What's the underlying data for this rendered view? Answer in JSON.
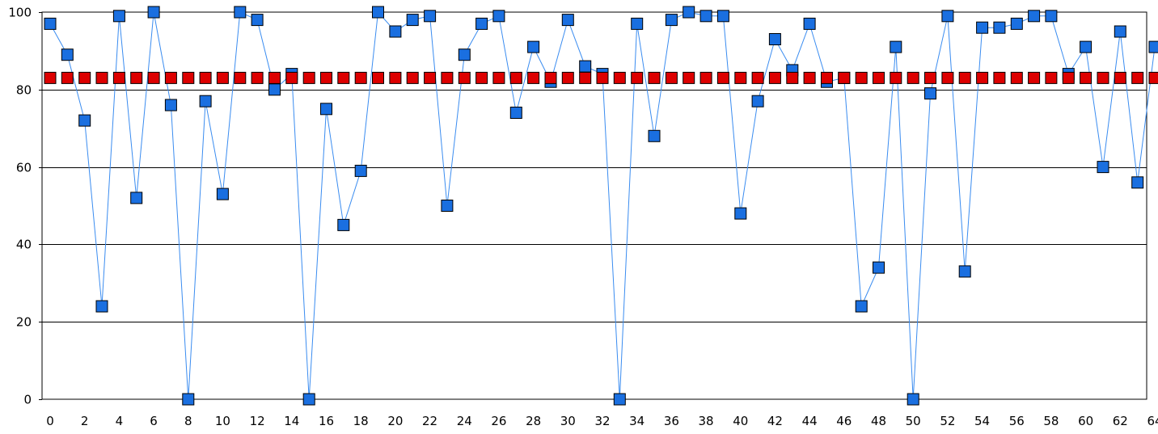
{
  "chart_data": {
    "type": "line",
    "title": "",
    "xlabel": "",
    "ylabel": "",
    "xlim": [
      0,
      64
    ],
    "ylim": [
      0,
      100
    ],
    "x_ticks": [
      0,
      2,
      4,
      6,
      8,
      10,
      12,
      14,
      16,
      18,
      20,
      22,
      24,
      26,
      28,
      30,
      32,
      34,
      36,
      38,
      40,
      42,
      44,
      46,
      48,
      50,
      52,
      54,
      56,
      58,
      60,
      62,
      64
    ],
    "y_ticks": [
      0,
      20,
      40,
      60,
      80,
      100
    ],
    "grid": "horizontal",
    "legend": "none",
    "series": [
      {
        "color": "#1a6fe0",
        "line_color": "#3a8cf0",
        "marker": "square",
        "values": [
          97,
          89,
          72,
          24,
          99,
          52,
          100,
          76,
          0,
          77,
          53,
          100,
          98,
          80,
          84,
          0,
          75,
          45,
          59,
          100,
          95,
          98,
          99,
          50,
          89,
          97,
          99,
          74,
          91,
          82,
          98,
          86,
          84,
          0,
          97,
          68,
          98,
          100,
          99,
          99,
          48,
          77,
          93,
          85,
          97,
          82,
          83,
          24,
          34,
          91,
          0,
          79,
          99,
          33,
          96,
          96,
          97,
          99,
          99,
          84,
          91,
          60,
          95,
          56,
          91
        ]
      },
      {
        "color": "#dd0000",
        "marker": "square",
        "values": [
          83,
          83,
          83,
          83,
          83,
          83,
          83,
          83,
          83,
          83,
          83,
          83,
          83,
          83,
          83,
          83,
          83,
          83,
          83,
          83,
          83,
          83,
          83,
          83,
          83,
          83,
          83,
          83,
          83,
          83,
          83,
          83,
          83,
          83,
          83,
          83,
          83,
          83,
          83,
          83,
          83,
          83,
          83,
          83,
          83,
          83,
          83,
          83,
          83,
          83,
          83,
          83,
          83,
          83,
          83,
          83,
          83,
          83,
          83,
          83,
          83,
          83,
          83,
          83,
          83
        ]
      }
    ]
  }
}
